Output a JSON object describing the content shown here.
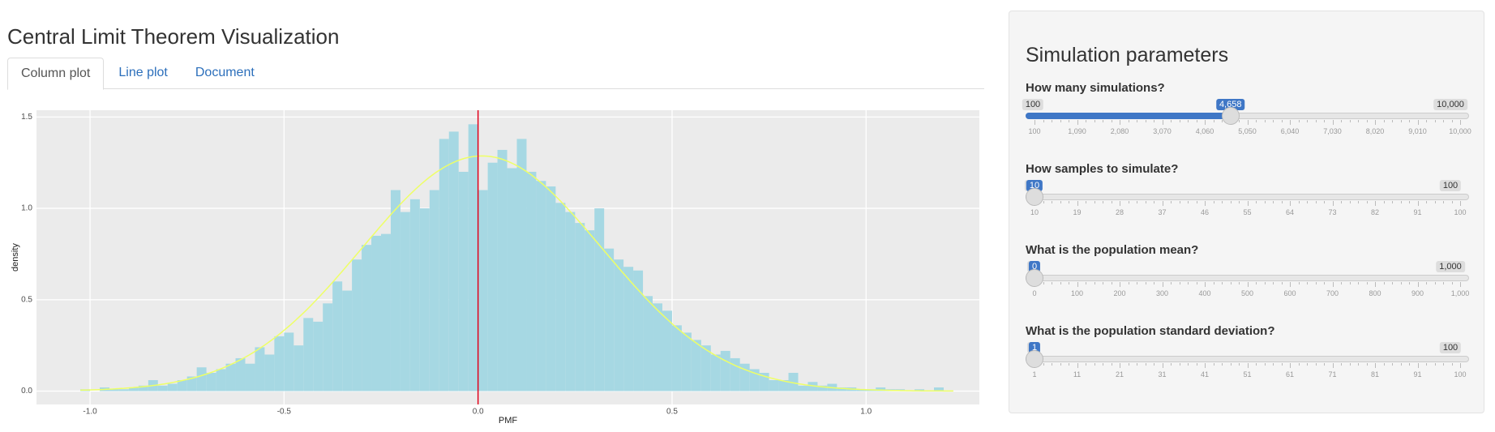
{
  "header": {
    "title": "Central Limit Theorem Visualization"
  },
  "tabs": [
    "Column plot",
    "Line plot",
    "Document"
  ],
  "chart_data": {
    "type": "histogram",
    "xlabel": "PMF",
    "ylabel": "density",
    "color": "#a6d8e3",
    "grid": true,
    "bins": [
      -1.025,
      -1,
      -0.975,
      -0.95,
      -0.925,
      -0.9,
      -0.875,
      -0.85,
      -0.825,
      -0.8,
      -0.775,
      -0.75,
      -0.725,
      -0.7,
      -0.675,
      -0.65,
      -0.625,
      -0.6,
      -0.575,
      -0.55,
      -0.525,
      -0.5,
      -0.475,
      -0.45,
      -0.425,
      -0.4,
      -0.375,
      -0.35,
      -0.325,
      -0.3,
      -0.275,
      -0.25,
      -0.225,
      -0.2,
      -0.175,
      -0.15,
      -0.125,
      -0.1,
      -0.075,
      -0.05,
      -0.025,
      0,
      0.025,
      0.05,
      0.075,
      0.1,
      0.125,
      0.15,
      0.175,
      0.2,
      0.225,
      0.25,
      0.275,
      0.3,
      0.325,
      0.35,
      0.375,
      0.4,
      0.425,
      0.45,
      0.475,
      0.5,
      0.525,
      0.55,
      0.575,
      0.6,
      0.625,
      0.65,
      0.675,
      0.7,
      0.725,
      0.75,
      0.775,
      0.8,
      0.825,
      0.85,
      0.875,
      0.9,
      0.925,
      0.95,
      0.975,
      1,
      1.025,
      1.05,
      1.075,
      1.1,
      1.125,
      1.15,
      1.175,
      1.2,
      1.225
    ],
    "values": [
      0.01,
      0,
      0.02,
      0.01,
      0.01,
      0.02,
      0.03,
      0.06,
      0.03,
      0.04,
      0.06,
      0.08,
      0.13,
      0.1,
      0.12,
      0.15,
      0.18,
      0.15,
      0.24,
      0.2,
      0.3,
      0.32,
      0.25,
      0.4,
      0.38,
      0.48,
      0.6,
      0.55,
      0.72,
      0.8,
      0.85,
      0.86,
      1.1,
      0.98,
      1.05,
      1.0,
      1.1,
      1.38,
      1.42,
      1.2,
      1.46,
      1.1,
      1.25,
      1.32,
      1.22,
      1.38,
      1.2,
      1.15,
      1.12,
      1.03,
      0.98,
      0.92,
      0.88,
      1.0,
      0.78,
      0.72,
      0.68,
      0.66,
      0.52,
      0.48,
      0.44,
      0.36,
      0.32,
      0.28,
      0.25,
      0.2,
      0.22,
      0.18,
      0.15,
      0.12,
      0.1,
      0.06,
      0.06,
      0.1,
      0.03,
      0.05,
      0.03,
      0.04,
      0.02,
      0.02,
      0.01,
      0.01,
      0.02,
      0.01,
      0.01,
      0,
      0.01,
      0,
      0.02,
      0
    ],
    "curve": {
      "mean": 0.01,
      "sd": 0.31,
      "color": "#eeff66"
    },
    "vline": {
      "x": 0,
      "color": "#e0001b"
    },
    "xlim": [
      -1.138,
      1.292
    ],
    "ylim": [
      -0.073,
      1.537
    ],
    "xticks": [
      {
        "value": -1,
        "label": "-1.0"
      },
      {
        "value": -0.5,
        "label": "-0.5"
      },
      {
        "value": 0,
        "label": "0.0"
      },
      {
        "value": 0.5,
        "label": "0.5"
      },
      {
        "value": 1,
        "label": "1.0"
      }
    ],
    "yticks": [
      {
        "value": 0,
        "label": "0.0"
      },
      {
        "value": 0.5,
        "label": "0.5"
      },
      {
        "value": 1,
        "label": "1.0"
      },
      {
        "value": 1.5,
        "label": "1.5"
      }
    ]
  },
  "sidebar": {
    "title": "Simulation parameters",
    "sliders": [
      {
        "label": "How many simulations?",
        "min": 100,
        "max": {
          "value": 10000,
          "label": "10,000"
        },
        "value": {
          "value": 4658,
          "label": "4,658"
        },
        "ticks": [
          "100",
          "1,090",
          "2,080",
          "3,070",
          "4,060",
          "5,050",
          "6,040",
          "7,030",
          "8,020",
          "9,010",
          "10,000"
        ]
      },
      {
        "label": "How samples to simulate?",
        "min": 10,
        "max": 100,
        "value": 10,
        "ticks": [
          "10",
          "19",
          "28",
          "37",
          "46",
          "55",
          "64",
          "73",
          "82",
          "91",
          "100"
        ]
      },
      {
        "label": "What is the population mean?",
        "min": 0,
        "max": {
          "value": 1000,
          "label": "1,000"
        },
        "value": 0,
        "ticks": [
          "0",
          "100",
          "200",
          "300",
          "400",
          "500",
          "600",
          "700",
          "800",
          "900",
          "1,000"
        ]
      },
      {
        "label": "What is the population standard deviation?",
        "min": 1,
        "max": 100,
        "value": 1,
        "ticks": [
          "1",
          "11",
          "21",
          "31",
          "41",
          "51",
          "61",
          "71",
          "81",
          "91",
          "100"
        ]
      }
    ]
  }
}
